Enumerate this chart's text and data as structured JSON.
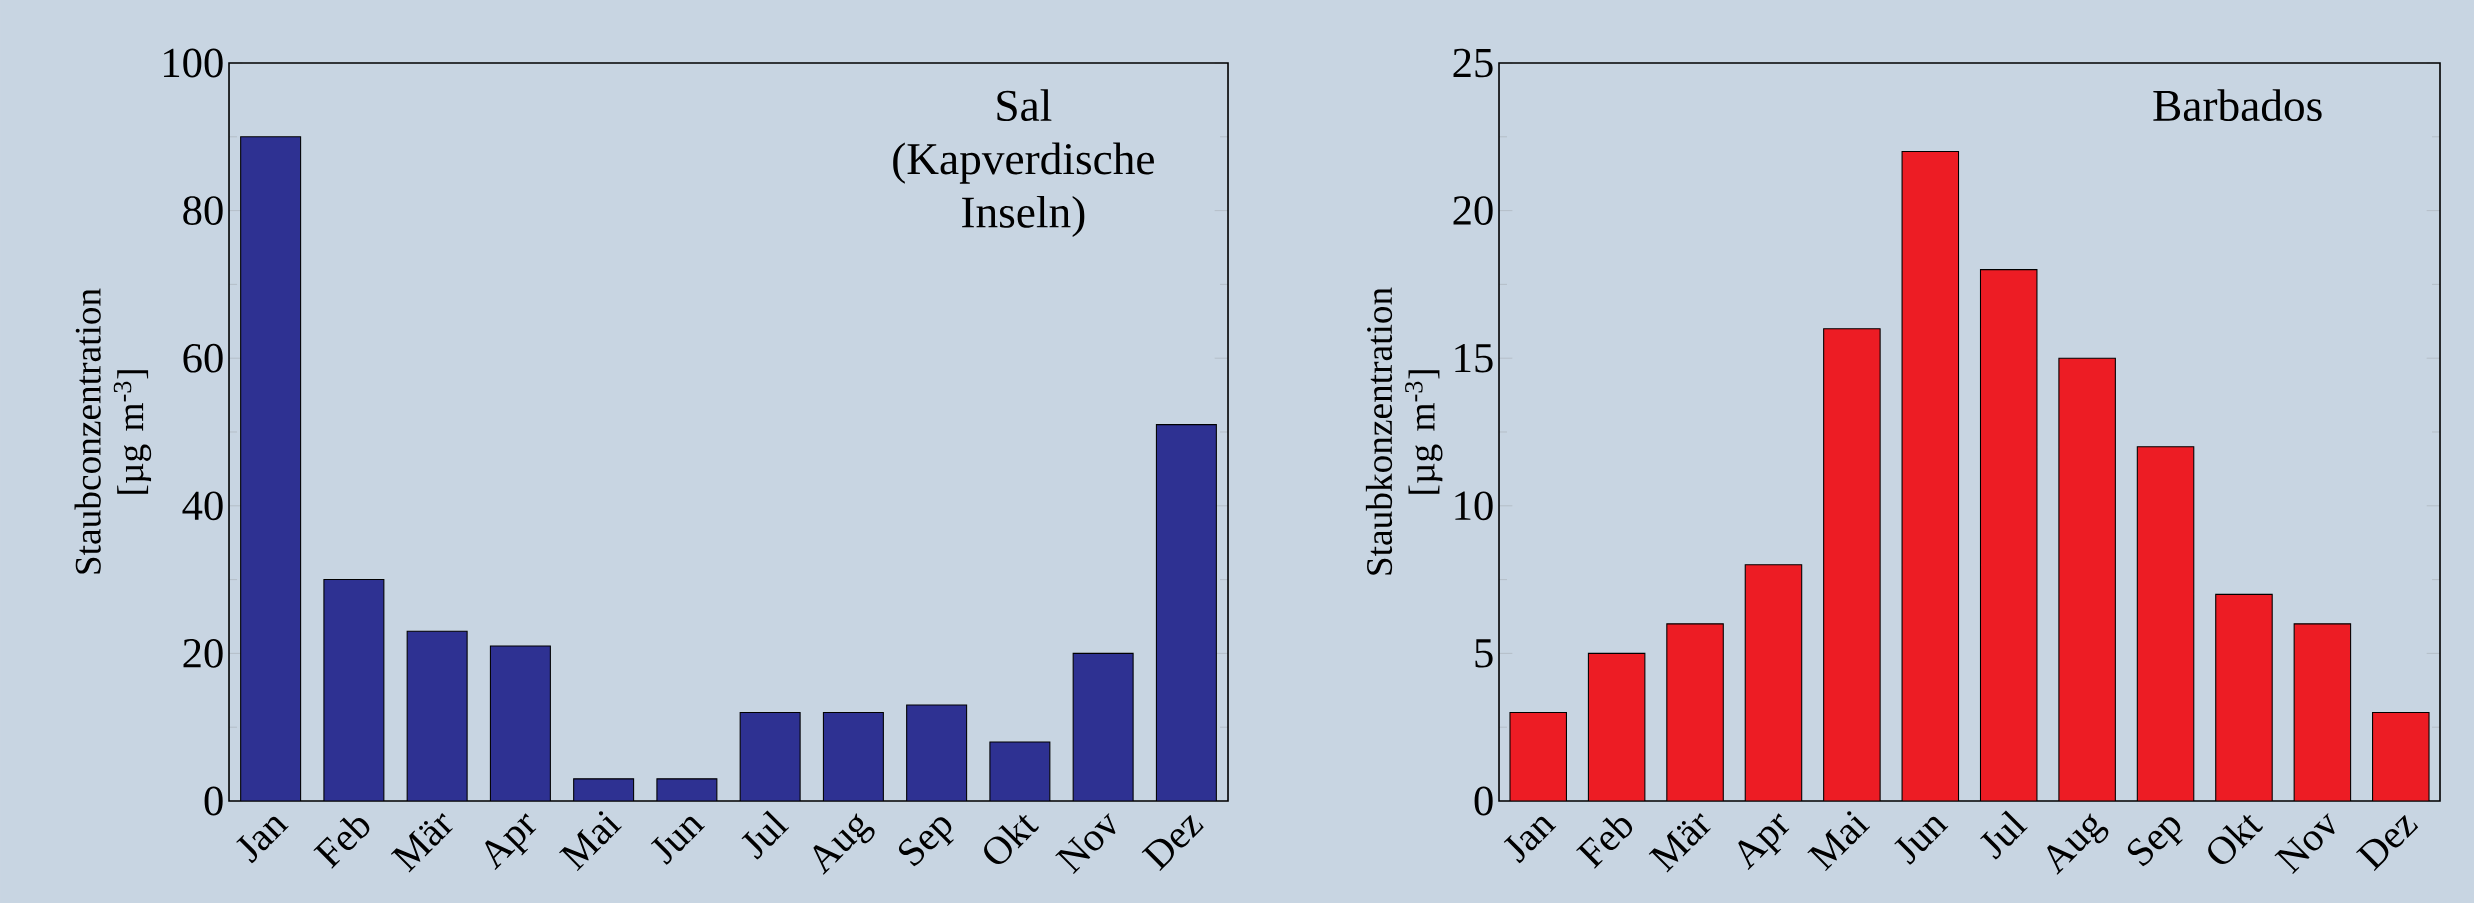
{
  "chart_data": [
    {
      "type": "bar",
      "title": "Sal (Kapverdische Inseln)",
      "ylabel": "Staubconzentration [µg m$^{-3}$]",
      "categories": [
        "Jan",
        "Feb",
        "Mär",
        "Apr",
        "Mai",
        "Jun",
        "Jul",
        "Aug",
        "Sep",
        "Okt",
        "Nov",
        "Dez"
      ],
      "values": [
        90,
        30,
        23,
        21,
        3,
        3,
        12,
        12,
        13,
        8,
        20,
        51
      ],
      "color": "#2e3192",
      "ylim": [
        0,
        100
      ],
      "yticks": [
        0,
        20,
        40,
        60,
        80,
        100
      ],
      "grid": false
    },
    {
      "type": "bar",
      "title": "Barbados",
      "ylabel": "Staubkonzentration [µg m$^{-3}$]",
      "categories": [
        "Jan",
        "Feb",
        "Mär",
        "Apr",
        "Mai",
        "Jun",
        "Jul",
        "Aug",
        "Sep",
        "Okt",
        "Nov",
        "Dez"
      ],
      "values": [
        3,
        5,
        6,
        8,
        16,
        22,
        18,
        15,
        12,
        7,
        6,
        3
      ],
      "color": "#ed1c24",
      "ylim": [
        0,
        25
      ],
      "yticks": [
        0,
        5,
        10,
        15,
        20,
        25
      ],
      "grid": false
    }
  ]
}
